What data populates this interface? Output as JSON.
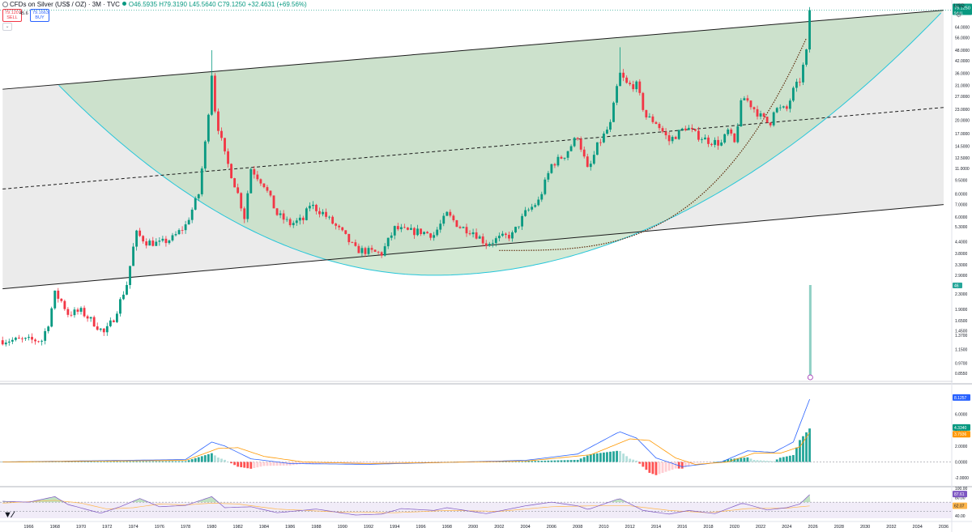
{
  "header": {
    "symbol": "CFDs on Silver (US$ / OZ) · 3M · TVC",
    "open": "O46.5935",
    "high": "H79.3190",
    "low": "L45.5640",
    "close": "C79.1250",
    "change": "+32.4631 (+69.56%)"
  },
  "trade": {
    "sell_price": "79.1207",
    "sell_label": "SELL",
    "spread": "45.6",
    "buy_price": "79.1663",
    "buy_label": "BUY"
  },
  "currency_label": "USD",
  "colors": {
    "up": "#089981",
    "down": "#f23645",
    "channel_fill": "#e6e6e6",
    "cup_fill": "#b7dbb7",
    "cup_stroke": "#26c6da",
    "macd_line": "#2962ff",
    "signal_line": "#ff9800",
    "rsi_line": "#7e57c2"
  },
  "chart_data": {
    "type": "candlestick",
    "scale": "log",
    "x_ticks": [
      "1964",
      "1966",
      "1968",
      "1970",
      "1972",
      "1974",
      "1976",
      "1978",
      "1980",
      "1982",
      "1984",
      "1986",
      "1988",
      "1990",
      "1992",
      "1994",
      "1996",
      "1998",
      "2000",
      "2002",
      "2004",
      "2006",
      "2008",
      "2010",
      "2012",
      "2014",
      "2016",
      "2018",
      "2020",
      "2022",
      "2024",
      "2026",
      "2028",
      "2030",
      "2032",
      "2034",
      "2036"
    ],
    "y_ticks": [
      64,
      56,
      48,
      42,
      36,
      31,
      27,
      23,
      20,
      17,
      14.5,
      12.5,
      11,
      9.5,
      8,
      7,
      6,
      5.3,
      4.4,
      3.8,
      3.3,
      2.9,
      2.3,
      1.9,
      1.65,
      1.45,
      1.37,
      1.15,
      0.97,
      0.855
    ],
    "y_tick_labels": [
      "64.0000",
      "56.0000",
      "48.0000",
      "42.0000",
      "36.0000",
      "31.0000",
      "27.0000",
      "23.0000",
      "20.0000",
      "17.0000",
      "14.5000",
      "12.5000",
      "11.0000",
      "9.5000",
      "8.0000",
      "7.0000",
      "6.0000",
      "5.3000",
      "4.4000",
      "3.8000",
      "3.3000",
      "2.9000",
      "2.3000",
      "1.9000",
      "1.6500",
      "1.4500",
      "1.3700",
      "1.1500",
      "0.9700",
      "0.8550"
    ],
    "price_range": [
      0.78,
      79.5
    ],
    "current_price": 79.125,
    "current_price_label": "79.1250",
    "current_countdown": "5d 11",
    "volume_label": "46",
    "keypoints": [
      {
        "t": 1964.0,
        "p": 1.29
      },
      {
        "t": 1967.0,
        "p": 1.29
      },
      {
        "t": 1967.5,
        "p": 1.6
      },
      {
        "t": 1968.0,
        "p": 2.3
      },
      {
        "t": 1968.5,
        "p": 2.1
      },
      {
        "t": 1969.0,
        "p": 1.8
      },
      {
        "t": 1970.0,
        "p": 1.85
      },
      {
        "t": 1971.0,
        "p": 1.6
      },
      {
        "t": 1971.8,
        "p": 1.4
      },
      {
        "t": 1972.5,
        "p": 1.7
      },
      {
        "t": 1973.5,
        "p": 2.6
      },
      {
        "t": 1974.2,
        "p": 4.9
      },
      {
        "t": 1975.0,
        "p": 4.4
      },
      {
        "t": 1976.0,
        "p": 4.3
      },
      {
        "t": 1977.0,
        "p": 4.6
      },
      {
        "t": 1978.0,
        "p": 5.4
      },
      {
        "t": 1979.0,
        "p": 8.0
      },
      {
        "t": 1979.6,
        "p": 17.0
      },
      {
        "t": 1980.0,
        "p": 36.0
      },
      {
        "t": 1980.3,
        "p": 21.0
      },
      {
        "t": 1981.0,
        "p": 13.0
      },
      {
        "t": 1982.0,
        "p": 8.0
      },
      {
        "t": 1982.5,
        "p": 6.0
      },
      {
        "t": 1983.0,
        "p": 11.0
      },
      {
        "t": 1984.0,
        "p": 9.0
      },
      {
        "t": 1985.0,
        "p": 6.2
      },
      {
        "t": 1986.0,
        "p": 5.5
      },
      {
        "t": 1987.0,
        "p": 5.8
      },
      {
        "t": 1987.5,
        "p": 7.0
      },
      {
        "t": 1988.5,
        "p": 6.3
      },
      {
        "t": 1990.0,
        "p": 4.9
      },
      {
        "t": 1991.0,
        "p": 4.0
      },
      {
        "t": 1992.0,
        "p": 3.9
      },
      {
        "t": 1993.0,
        "p": 3.8
      },
      {
        "t": 1994.0,
        "p": 5.2
      },
      {
        "t": 1995.0,
        "p": 5.0
      },
      {
        "t": 1996.0,
        "p": 5.0
      },
      {
        "t": 1997.0,
        "p": 4.8
      },
      {
        "t": 1998.0,
        "p": 6.2
      },
      {
        "t": 1999.0,
        "p": 5.3
      },
      {
        "t": 2000.0,
        "p": 5.0
      },
      {
        "t": 2001.0,
        "p": 4.3
      },
      {
        "t": 2002.0,
        "p": 4.6
      },
      {
        "t": 2003.0,
        "p": 4.8
      },
      {
        "t": 2004.0,
        "p": 6.3
      },
      {
        "t": 2005.0,
        "p": 7.3
      },
      {
        "t": 2006.0,
        "p": 11.5
      },
      {
        "t": 2007.0,
        "p": 13.0
      },
      {
        "t": 2008.0,
        "p": 16.5
      },
      {
        "t": 2008.8,
        "p": 10.5
      },
      {
        "t": 2009.5,
        "p": 14.5
      },
      {
        "t": 2010.5,
        "p": 19.0
      },
      {
        "t": 2011.2,
        "p": 36.0
      },
      {
        "t": 2011.8,
        "p": 31.0
      },
      {
        "t": 2012.5,
        "p": 31.0
      },
      {
        "t": 2013.2,
        "p": 21.0
      },
      {
        "t": 2014.0,
        "p": 19.5
      },
      {
        "t": 2015.0,
        "p": 15.5
      },
      {
        "t": 2016.3,
        "p": 18.5
      },
      {
        "t": 2017.0,
        "p": 16.8
      },
      {
        "t": 2018.0,
        "p": 15.5
      },
      {
        "t": 2019.0,
        "p": 15.0
      },
      {
        "t": 2019.5,
        "p": 17.5
      },
      {
        "t": 2020.0,
        "p": 15.0
      },
      {
        "t": 2020.6,
        "p": 27.0
      },
      {
        "t": 2021.0,
        "p": 25.5
      },
      {
        "t": 2022.0,
        "p": 21.0
      },
      {
        "t": 2022.7,
        "p": 19.0
      },
      {
        "t": 2023.0,
        "p": 23.0
      },
      {
        "t": 2023.5,
        "p": 23.0
      },
      {
        "t": 2024.0,
        "p": 23.0
      },
      {
        "t": 2024.5,
        "p": 29.0
      },
      {
        "t": 2025.0,
        "p": 33.0
      },
      {
        "t": 2025.5,
        "p": 46.6
      },
      {
        "t": 2025.8,
        "p": 79.1
      }
    ],
    "wicks": [
      {
        "t": 1980.0,
        "p": 48.0
      },
      {
        "t": 2011.3,
        "p": 49.8
      }
    ],
    "channel": {
      "upper": [
        {
          "t": 1964.0,
          "p": 29.5
        },
        {
          "t": 2036.0,
          "p": 79.0
        }
      ],
      "lower": [
        {
          "t": 1964.0,
          "p": 2.45
        },
        {
          "t": 2036.0,
          "p": 7.0
        }
      ],
      "mid": [
        {
          "t": 1964.0,
          "p": 8.5
        },
        {
          "t": 2036.0,
          "p": 23.5
        }
      ]
    },
    "cup": {
      "left": {
        "t": 1968.3,
        "p": 31.0
      },
      "bottom": {
        "t": 1997.0,
        "p": 2.9
      },
      "right": {
        "t": 2036.0,
        "p": 79.0
      }
    },
    "macd": {
      "label_value": "8.1257",
      "macd_value": "4.3340",
      "signal_value": "3.7936",
      "y_ticks": [
        6,
        4,
        2,
        0,
        -2
      ],
      "y_tick_labels": [
        "6.0000",
        "4.0000",
        "2.0000",
        "0.0000",
        "-2.0000"
      ],
      "y_range": [
        -3.0,
        9.0
      ],
      "macd_keys": [
        {
          "t": 1964,
          "v": 0
        },
        {
          "t": 1978,
          "v": 0.3
        },
        {
          "t": 1980,
          "v": 2.5
        },
        {
          "t": 1981,
          "v": 2.0
        },
        {
          "t": 1983,
          "v": 0.4
        },
        {
          "t": 1986,
          "v": -0.2
        },
        {
          "t": 1992,
          "v": -0.3
        },
        {
          "t": 2004,
          "v": 0.2
        },
        {
          "t": 2008,
          "v": 1.0
        },
        {
          "t": 2011.2,
          "v": 3.8
        },
        {
          "t": 2012.5,
          "v": 3.0
        },
        {
          "t": 2014,
          "v": 0.5
        },
        {
          "t": 2016,
          "v": -0.6
        },
        {
          "t": 2019,
          "v": 0.0
        },
        {
          "t": 2021,
          "v": 1.4
        },
        {
          "t": 2023,
          "v": 1.2
        },
        {
          "t": 2024.5,
          "v": 2.5
        },
        {
          "t": 2025.8,
          "v": 8.1
        }
      ],
      "signal_keys": [
        {
          "t": 1964,
          "v": 0
        },
        {
          "t": 1978,
          "v": 0.2
        },
        {
          "t": 1980.5,
          "v": 1.7
        },
        {
          "t": 1982,
          "v": 1.8
        },
        {
          "t": 1984,
          "v": 0.7
        },
        {
          "t": 1987,
          "v": 0.0
        },
        {
          "t": 1992,
          "v": -0.2
        },
        {
          "t": 2004,
          "v": 0.1
        },
        {
          "t": 2009,
          "v": 0.9
        },
        {
          "t": 2012,
          "v": 2.9
        },
        {
          "t": 2013.5,
          "v": 2.7
        },
        {
          "t": 2015.5,
          "v": 0.5
        },
        {
          "t": 2017,
          "v": -0.3
        },
        {
          "t": 2019.5,
          "v": 0.0
        },
        {
          "t": 2021.5,
          "v": 1.1
        },
        {
          "t": 2023.5,
          "v": 1.1
        },
        {
          "t": 2025,
          "v": 1.9
        },
        {
          "t": 2025.8,
          "v": 3.8
        }
      ]
    },
    "rsi": {
      "value": "87.61",
      "ma_value": "62.07",
      "y_ticks": [
        100,
        80,
        60,
        40
      ],
      "y_tick_labels": [
        "100.00",
        "80.00",
        "60.00",
        "40.00"
      ],
      "y_range": [
        35,
        102
      ],
      "rsi_keys": [
        {
          "t": 1964,
          "v": 72
        },
        {
          "t": 1966,
          "v": 70
        },
        {
          "t": 1968,
          "v": 82
        },
        {
          "t": 1969,
          "v": 65
        },
        {
          "t": 1971.5,
          "v": 46
        },
        {
          "t": 1973,
          "v": 60
        },
        {
          "t": 1974.5,
          "v": 78
        },
        {
          "t": 1976,
          "v": 60
        },
        {
          "t": 1978,
          "v": 63
        },
        {
          "t": 1980,
          "v": 82
        },
        {
          "t": 1981,
          "v": 58
        },
        {
          "t": 1983,
          "v": 60
        },
        {
          "t": 1985,
          "v": 47
        },
        {
          "t": 1988,
          "v": 55
        },
        {
          "t": 1991,
          "v": 42
        },
        {
          "t": 1993,
          "v": 44
        },
        {
          "t": 1994.5,
          "v": 56
        },
        {
          "t": 1997,
          "v": 52
        },
        {
          "t": 1998,
          "v": 58
        },
        {
          "t": 2001,
          "v": 45
        },
        {
          "t": 2004,
          "v": 62
        },
        {
          "t": 2006,
          "v": 70
        },
        {
          "t": 2008,
          "v": 62
        },
        {
          "t": 2008.8,
          "v": 54
        },
        {
          "t": 2011.2,
          "v": 78
        },
        {
          "t": 2013,
          "v": 52
        },
        {
          "t": 2015,
          "v": 44
        },
        {
          "t": 2016.5,
          "v": 52
        },
        {
          "t": 2018.5,
          "v": 45
        },
        {
          "t": 2020.6,
          "v": 68
        },
        {
          "t": 2022.5,
          "v": 53
        },
        {
          "t": 2024,
          "v": 58
        },
        {
          "t": 2025,
          "v": 66
        },
        {
          "t": 2025.8,
          "v": 87.6
        }
      ],
      "ma_keys": [
        {
          "t": 1964,
          "v": 68
        },
        {
          "t": 1968,
          "v": 74
        },
        {
          "t": 1970,
          "v": 68
        },
        {
          "t": 1972,
          "v": 55
        },
        {
          "t": 1974,
          "v": 58
        },
        {
          "t": 1976,
          "v": 66
        },
        {
          "t": 1978,
          "v": 64
        },
        {
          "t": 1980,
          "v": 68
        },
        {
          "t": 1982,
          "v": 66
        },
        {
          "t": 1985,
          "v": 55
        },
        {
          "t": 1990,
          "v": 48
        },
        {
          "t": 1994,
          "v": 47
        },
        {
          "t": 1998,
          "v": 52
        },
        {
          "t": 2002,
          "v": 50
        },
        {
          "t": 2006,
          "v": 60
        },
        {
          "t": 2009,
          "v": 62
        },
        {
          "t": 2012,
          "v": 62
        },
        {
          "t": 2015,
          "v": 52
        },
        {
          "t": 2018,
          "v": 47
        },
        {
          "t": 2021,
          "v": 56
        },
        {
          "t": 2024,
          "v": 57
        },
        {
          "t": 2025.8,
          "v": 62
        }
      ]
    }
  }
}
